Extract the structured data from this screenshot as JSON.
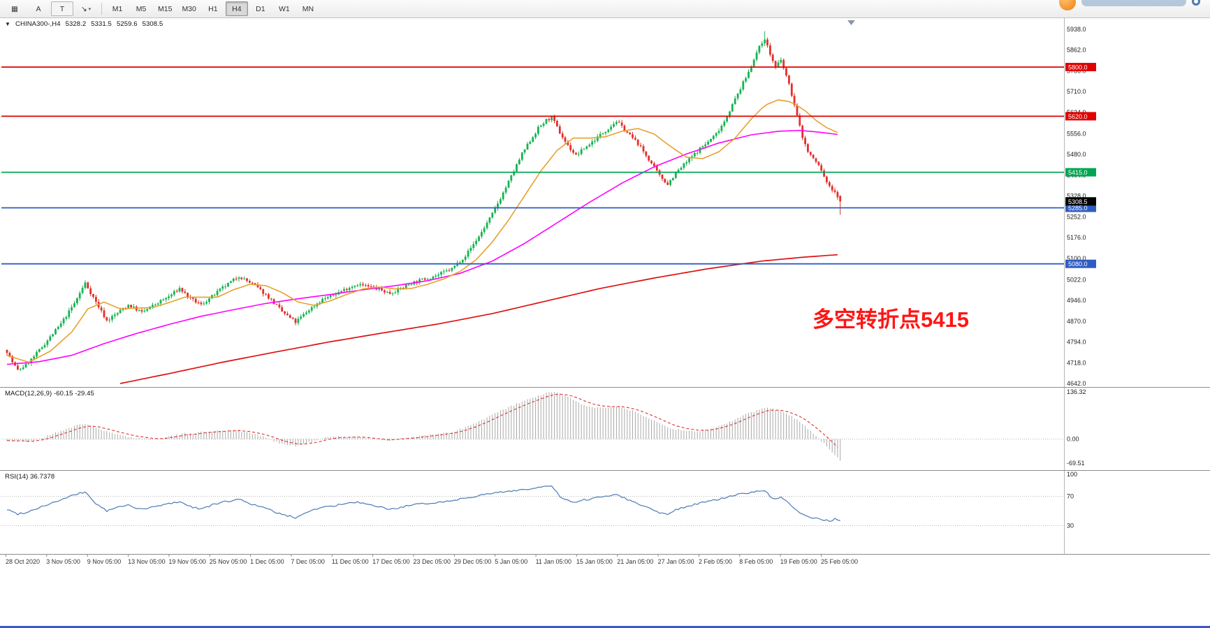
{
  "toolbar": {
    "tools": [
      {
        "name": "grid-tool",
        "glyph": "▦"
      },
      {
        "name": "cursor-a-tool",
        "glyph": "A"
      },
      {
        "name": "text-tool",
        "glyph": "T"
      },
      {
        "name": "arrow-tool",
        "glyph": "↘"
      }
    ],
    "dropdown_caret": "▾",
    "timeframes": [
      "M1",
      "M5",
      "M15",
      "M30",
      "H1",
      "H4",
      "D1",
      "W1",
      "MN"
    ],
    "active_timeframe": "H4"
  },
  "header": {
    "collapse_glyph": "▼",
    "symbol": "CHINA300-,H4",
    "open": "5328.2",
    "high": "5331.5",
    "low": "5259.6",
    "close": "5308.5"
  },
  "annotation": {
    "text": "多空转折点5415",
    "color": "#ff1515"
  },
  "macd": {
    "header": "MACD(12,26,9) -60.15 -29.45",
    "axis_labels": [
      "136.32",
      "0.00",
      "-69.51"
    ],
    "max": 136.32,
    "min": -69.51
  },
  "rsi": {
    "header": "RSI(14) 36.7378",
    "axis_labels": [
      "100",
      "70",
      "30"
    ],
    "levels": [
      70,
      30
    ]
  },
  "axes": {
    "price_ticks": [
      "5938.0",
      "5862.0",
      "5786.0",
      "5710.0",
      "5634.0",
      "5556.0",
      "5480.0",
      "5404.0",
      "5328.0",
      "5252.0",
      "5176.0",
      "5100.0",
      "5022.0",
      "4946.0",
      "4870.0",
      "4794.0",
      "4718.0",
      "4642.0"
    ],
    "time_labels": [
      "28 Oct 2020",
      "3 Nov 05:00",
      "9 Nov 05:00",
      "13 Nov 05:00",
      "19 Nov 05:00",
      "25 Nov 05:00",
      "1 Dec 05:00",
      "7 Dec 05:00",
      "11 Dec 05:00",
      "17 Dec 05:00",
      "23 Dec 05:00",
      "29 Dec 05:00",
      "5 Jan 05:00",
      "11 Jan 05:00",
      "15 Jan 05:00",
      "21 Jan 05:00",
      "27 Jan 05:00",
      "2 Feb 05:00",
      "8 Feb 05:00",
      "19 Feb 05:00",
      "25 Feb 05:00"
    ]
  },
  "chart_data": {
    "type": "candlestick",
    "symbol": "CHINA300-",
    "timeframe": "H4",
    "bars": 310,
    "price_range": [
      4642,
      5938
    ],
    "last_ohlc": {
      "open": 5328.2,
      "high": 5331.5,
      "low": 5259.6,
      "close": 5308.5
    },
    "levels": [
      {
        "value": 5800.0,
        "label": "5800.0",
        "color": "#e00000"
      },
      {
        "value": 5620.0,
        "label": "5620.0",
        "color": "#e00000"
      },
      {
        "value": 5415.0,
        "label": "5415.0",
        "color": "#00a651"
      },
      {
        "value": 5285.0,
        "label": "5285.0",
        "color": "#2e5cc5"
      },
      {
        "value": 5080.0,
        "label": "5080.0",
        "color": "#2e5cc5"
      }
    ],
    "current_price": {
      "value": 5308.5,
      "label": "5308.5",
      "color": "#000000"
    },
    "colors": {
      "up": "#17b351",
      "down": "#e32f2a",
      "ma_fast": "#e8a02c",
      "ma_mid": "#ff00ff",
      "ma_slow": "#dd1111",
      "macd_hist": "#a8a8a8",
      "macd_signal": "#e03030",
      "rsi": "#4a7ab5",
      "grid_dots": "#b8b8b8"
    },
    "close_anchors": [
      [
        0,
        4760
      ],
      [
        2,
        4720
      ],
      [
        4,
        4690
      ],
      [
        7,
        4710
      ],
      [
        10,
        4740
      ],
      [
        15,
        4800
      ],
      [
        20,
        4860
      ],
      [
        25,
        4935
      ],
      [
        29,
        5010
      ],
      [
        31,
        4975
      ],
      [
        33,
        4940
      ],
      [
        37,
        4872
      ],
      [
        41,
        4900
      ],
      [
        45,
        4930
      ],
      [
        50,
        4902
      ],
      [
        55,
        4932
      ],
      [
        60,
        4960
      ],
      [
        64,
        4990
      ],
      [
        68,
        4952
      ],
      [
        72,
        4930
      ],
      [
        76,
        4960
      ],
      [
        80,
        4992
      ],
      [
        86,
        5035
      ],
      [
        92,
        5000
      ],
      [
        97,
        4958
      ],
      [
        102,
        4905
      ],
      [
        107,
        4866
      ],
      [
        112,
        4912
      ],
      [
        117,
        4950
      ],
      [
        121,
        4966
      ],
      [
        126,
        4990
      ],
      [
        130,
        5006
      ],
      [
        134,
        4996
      ],
      [
        138,
        4986
      ],
      [
        142,
        4972
      ],
      [
        146,
        4990
      ],
      [
        150,
        5010
      ],
      [
        155,
        5025
      ],
      [
        160,
        5040
      ],
      [
        165,
        5062
      ],
      [
        170,
        5110
      ],
      [
        175,
        5180
      ],
      [
        180,
        5262
      ],
      [
        184,
        5340
      ],
      [
        188,
        5420
      ],
      [
        191,
        5482
      ],
      [
        194,
        5530
      ],
      [
        197,
        5576
      ],
      [
        200,
        5605
      ],
      [
        202,
        5616
      ],
      [
        205,
        5560
      ],
      [
        208,
        5512
      ],
      [
        211,
        5476
      ],
      [
        214,
        5502
      ],
      [
        217,
        5526
      ],
      [
        220,
        5552
      ],
      [
        223,
        5576
      ],
      [
        226,
        5602
      ],
      [
        230,
        5560
      ],
      [
        234,
        5520
      ],
      [
        238,
        5462
      ],
      [
        242,
        5402
      ],
      [
        245,
        5372
      ],
      [
        248,
        5412
      ],
      [
        252,
        5452
      ],
      [
        255,
        5482
      ],
      [
        257,
        5502
      ],
      [
        260,
        5526
      ],
      [
        263,
        5556
      ],
      [
        266,
        5602
      ],
      [
        269,
        5662
      ],
      [
        272,
        5722
      ],
      [
        275,
        5782
      ],
      [
        277,
        5832
      ],
      [
        279,
        5872
      ],
      [
        281,
        5906
      ],
      [
        283,
        5846
      ],
      [
        285,
        5800
      ],
      [
        287,
        5824
      ],
      [
        289,
        5768
      ],
      [
        291,
        5700
      ],
      [
        293,
        5620
      ],
      [
        295,
        5545
      ],
      [
        297,
        5490
      ],
      [
        299,
        5465
      ],
      [
        301,
        5440
      ],
      [
        303,
        5400
      ],
      [
        305,
        5360
      ],
      [
        307,
        5345
      ],
      [
        309,
        5308.5
      ]
    ],
    "ma_fast_anchors": [
      [
        0,
        4745
      ],
      [
        8,
        4720
      ],
      [
        16,
        4760
      ],
      [
        24,
        4830
      ],
      [
        30,
        4915
      ],
      [
        36,
        4940
      ],
      [
        42,
        4915
      ],
      [
        48,
        4918
      ],
      [
        54,
        4920
      ],
      [
        60,
        4938
      ],
      [
        66,
        4958
      ],
      [
        72,
        4958
      ],
      [
        78,
        4958
      ],
      [
        84,
        4985
      ],
      [
        90,
        5005
      ],
      [
        96,
        5000
      ],
      [
        102,
        4975
      ],
      [
        108,
        4940
      ],
      [
        114,
        4928
      ],
      [
        120,
        4945
      ],
      [
        126,
        4968
      ],
      [
        132,
        4988
      ],
      [
        138,
        4995
      ],
      [
        144,
        4988
      ],
      [
        150,
        4990
      ],
      [
        156,
        5005
      ],
      [
        162,
        5025
      ],
      [
        168,
        5052
      ],
      [
        174,
        5095
      ],
      [
        180,
        5160
      ],
      [
        186,
        5240
      ],
      [
        192,
        5330
      ],
      [
        198,
        5420
      ],
      [
        204,
        5495
      ],
      [
        210,
        5540
      ],
      [
        216,
        5540
      ],
      [
        222,
        5545
      ],
      [
        228,
        5565
      ],
      [
        234,
        5575
      ],
      [
        240,
        5555
      ],
      [
        246,
        5510
      ],
      [
        252,
        5470
      ],
      [
        258,
        5465
      ],
      [
        264,
        5490
      ],
      [
        270,
        5540
      ],
      [
        276,
        5610
      ],
      [
        281,
        5660
      ],
      [
        286,
        5680
      ],
      [
        291,
        5672
      ],
      [
        296,
        5640
      ],
      [
        300,
        5605
      ],
      [
        304,
        5578
      ],
      [
        309,
        5556
      ]
    ],
    "ma_mid_anchors": [
      [
        0,
        4712
      ],
      [
        12,
        4722
      ],
      [
        24,
        4745
      ],
      [
        36,
        4788
      ],
      [
        48,
        4825
      ],
      [
        60,
        4858
      ],
      [
        72,
        4888
      ],
      [
        84,
        4912
      ],
      [
        96,
        4935
      ],
      [
        108,
        4952
      ],
      [
        120,
        4968
      ],
      [
        132,
        4985
      ],
      [
        144,
        5000
      ],
      [
        156,
        5018
      ],
      [
        168,
        5045
      ],
      [
        180,
        5090
      ],
      [
        192,
        5155
      ],
      [
        204,
        5230
      ],
      [
        216,
        5305
      ],
      [
        228,
        5375
      ],
      [
        240,
        5435
      ],
      [
        252,
        5482
      ],
      [
        264,
        5522
      ],
      [
        276,
        5552
      ],
      [
        286,
        5565
      ],
      [
        294,
        5568
      ],
      [
        301,
        5562
      ],
      [
        309,
        5552
      ]
    ],
    "ma_slow_anchors": [
      [
        42,
        4642
      ],
      [
        60,
        4678
      ],
      [
        80,
        4720
      ],
      [
        100,
        4758
      ],
      [
        120,
        4795
      ],
      [
        140,
        4828
      ],
      [
        160,
        4860
      ],
      [
        180,
        4898
      ],
      [
        200,
        4944
      ],
      [
        220,
        4990
      ],
      [
        240,
        5028
      ],
      [
        260,
        5062
      ],
      [
        280,
        5090
      ],
      [
        295,
        5104
      ],
      [
        309,
        5114
      ]
    ],
    "macd_anchors": [
      [
        0,
        -4
      ],
      [
        8,
        -8
      ],
      [
        14,
        6
      ],
      [
        20,
        24
      ],
      [
        26,
        40
      ],
      [
        30,
        43
      ],
      [
        36,
        24
      ],
      [
        42,
        10
      ],
      [
        48,
        4
      ],
      [
        54,
        -2
      ],
      [
        60,
        8
      ],
      [
        66,
        16
      ],
      [
        72,
        20
      ],
      [
        78,
        24
      ],
      [
        84,
        27
      ],
      [
        90,
        18
      ],
      [
        96,
        4
      ],
      [
        102,
        -14
      ],
      [
        107,
        -20
      ],
      [
        112,
        -10
      ],
      [
        118,
        4
      ],
      [
        124,
        8
      ],
      [
        130,
        6
      ],
      [
        136,
        0
      ],
      [
        142,
        -4
      ],
      [
        148,
        4
      ],
      [
        154,
        10
      ],
      [
        160,
        14
      ],
      [
        166,
        22
      ],
      [
        172,
        40
      ],
      [
        178,
        62
      ],
      [
        184,
        85
      ],
      [
        190,
        105
      ],
      [
        196,
        122
      ],
      [
        200,
        132
      ],
      [
        203,
        136
      ],
      [
        207,
        126
      ],
      [
        211,
        108
      ],
      [
        215,
        96
      ],
      [
        219,
        90
      ],
      [
        223,
        92
      ],
      [
        227,
        94
      ],
      [
        231,
        84
      ],
      [
        235,
        72
      ],
      [
        239,
        58
      ],
      [
        243,
        42
      ],
      [
        247,
        30
      ],
      [
        251,
        24
      ],
      [
        255,
        22
      ],
      [
        259,
        26
      ],
      [
        263,
        34
      ],
      [
        267,
        46
      ],
      [
        271,
        60
      ],
      [
        275,
        74
      ],
      [
        279,
        86
      ],
      [
        282,
        90
      ],
      [
        285,
        84
      ],
      [
        288,
        80
      ],
      [
        291,
        66
      ],
      [
        294,
        50
      ],
      [
        297,
        30
      ],
      [
        300,
        10
      ],
      [
        302,
        -6
      ],
      [
        304,
        -22
      ],
      [
        306,
        -38
      ],
      [
        308,
        -52
      ],
      [
        309,
        -60.15
      ]
    ],
    "rsi_anchors": [
      [
        0,
        52
      ],
      [
        4,
        46
      ],
      [
        8,
        49
      ],
      [
        12,
        55
      ],
      [
        16,
        60
      ],
      [
        20,
        65
      ],
      [
        25,
        72
      ],
      [
        29,
        76
      ],
      [
        33,
        60
      ],
      [
        37,
        50
      ],
      [
        41,
        55
      ],
      [
        45,
        58
      ],
      [
        50,
        52
      ],
      [
        55,
        56
      ],
      [
        60,
        60
      ],
      [
        64,
        63
      ],
      [
        68,
        56
      ],
      [
        72,
        53
      ],
      [
        76,
        58
      ],
      [
        80,
        62
      ],
      [
        86,
        66
      ],
      [
        92,
        58
      ],
      [
        97,
        52
      ],
      [
        102,
        45
      ],
      [
        107,
        41
      ],
      [
        112,
        50
      ],
      [
        117,
        55
      ],
      [
        121,
        57
      ],
      [
        126,
        60
      ],
      [
        130,
        62
      ],
      [
        134,
        58
      ],
      [
        138,
        56
      ],
      [
        142,
        52
      ],
      [
        146,
        55
      ],
      [
        150,
        58
      ],
      [
        155,
        60
      ],
      [
        160,
        62
      ],
      [
        165,
        64
      ],
      [
        170,
        68
      ],
      [
        175,
        71
      ],
      [
        180,
        74
      ],
      [
        184,
        76
      ],
      [
        188,
        78
      ],
      [
        191,
        79
      ],
      [
        194,
        80
      ],
      [
        197,
        82
      ],
      [
        200,
        83
      ],
      [
        202,
        84
      ],
      [
        205,
        70
      ],
      [
        208,
        64
      ],
      [
        211,
        61
      ],
      [
        214,
        65
      ],
      [
        217,
        67
      ],
      [
        220,
        69
      ],
      [
        223,
        71
      ],
      [
        226,
        73
      ],
      [
        230,
        66
      ],
      [
        234,
        60
      ],
      [
        238,
        54
      ],
      [
        242,
        48
      ],
      [
        245,
        46
      ],
      [
        248,
        52
      ],
      [
        252,
        56
      ],
      [
        255,
        59
      ],
      [
        257,
        61
      ],
      [
        260,
        63
      ],
      [
        263,
        65
      ],
      [
        266,
        68
      ],
      [
        269,
        71
      ],
      [
        272,
        73
      ],
      [
        275,
        75
      ],
      [
        277,
        76
      ],
      [
        279,
        77
      ],
      [
        281,
        78
      ],
      [
        283,
        70
      ],
      [
        285,
        66
      ],
      [
        287,
        68
      ],
      [
        289,
        63
      ],
      [
        291,
        57
      ],
      [
        293,
        50
      ],
      [
        295,
        45
      ],
      [
        297,
        42
      ],
      [
        299,
        41
      ],
      [
        301,
        40
      ],
      [
        303,
        38
      ],
      [
        305,
        36
      ],
      [
        307,
        39
      ],
      [
        309,
        36.74
      ]
    ]
  }
}
